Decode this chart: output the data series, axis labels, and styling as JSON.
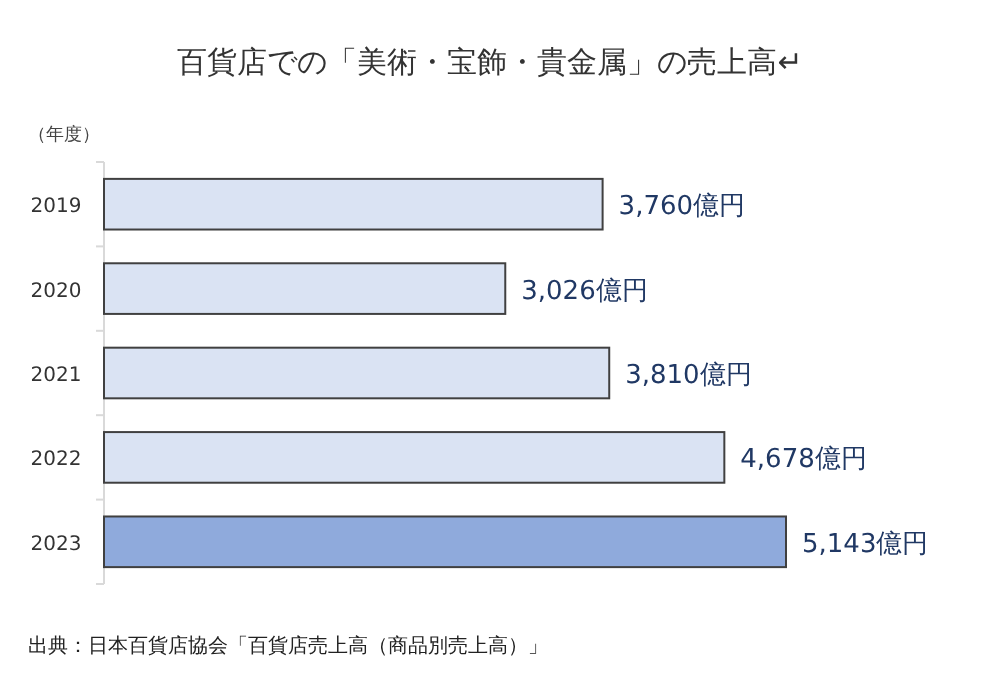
{
  "chart_data": {
    "type": "bar",
    "orientation": "horizontal",
    "title": "百貨店での「美術・宝飾・貴金属」の売上高↵",
    "ylabel": "（年度）",
    "categories": [
      "2019",
      "2020",
      "2021",
      "2022",
      "2023"
    ],
    "values": [
      3760,
      3026,
      3810,
      4678,
      5143
    ],
    "colors": [
      "#dae3f3",
      "#dae3f3",
      "#dae3f3",
      "#dae3f3",
      "#8faadc"
    ],
    "value_labels": [
      "3,760億円",
      "3,026億円",
      "3,810億円",
      "4,678億円",
      "5,143億円"
    ],
    "annotations": [
      "出典：日本百貨店協会「百貨店売上高（商品別売上高）」"
    ]
  }
}
